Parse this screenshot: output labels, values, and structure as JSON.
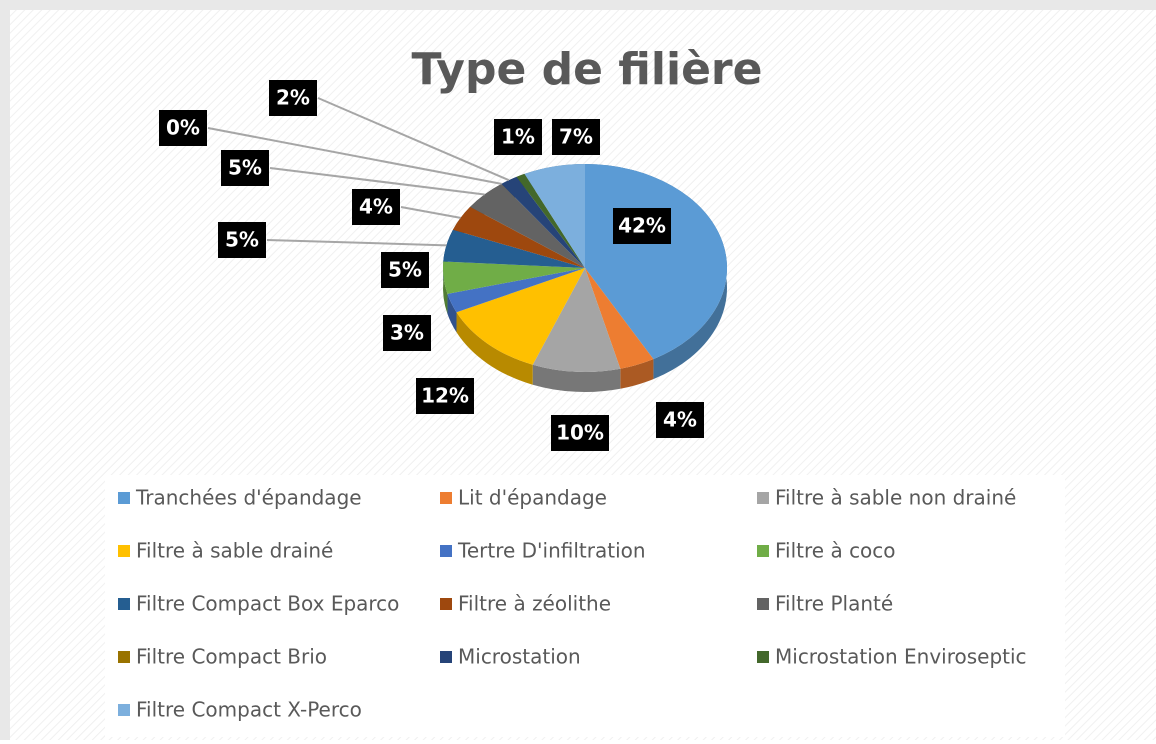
{
  "chart_data": {
    "type": "pie",
    "title": "Type de filière",
    "categories": [
      "Tranchées d'épandage",
      "Lit d'épandage",
      "Filtre à sable non drainé",
      "Filtre à sable drainé",
      "Tertre D'infiltration",
      "Filtre à coco",
      "Filtre Compact Box Eparco",
      "Filtre à zéolithe",
      "Filtre Planté",
      "Filtre Compact Brio",
      "Microstation",
      "Microstation Enviroseptic",
      "Filtre Compact X-Perco"
    ],
    "values": [
      42,
      4,
      10,
      12,
      3,
      5,
      5,
      4,
      5,
      0,
      2,
      1,
      7
    ],
    "value_labels": [
      "42%",
      "4%",
      "10%",
      "12%",
      "3%",
      "5%",
      "5%",
      "4%",
      "5%",
      "0%",
      "2%",
      "1%",
      "7%"
    ],
    "colors": [
      "#5b9bd5",
      "#ed7d31",
      "#a5a5a5",
      "#ffc000",
      "#4472c4",
      "#70ad47",
      "#255e91",
      "#9e480e",
      "#636363",
      "#997300",
      "#264478",
      "#43682b",
      "#7cafdd"
    ],
    "legend": "bottom"
  }
}
